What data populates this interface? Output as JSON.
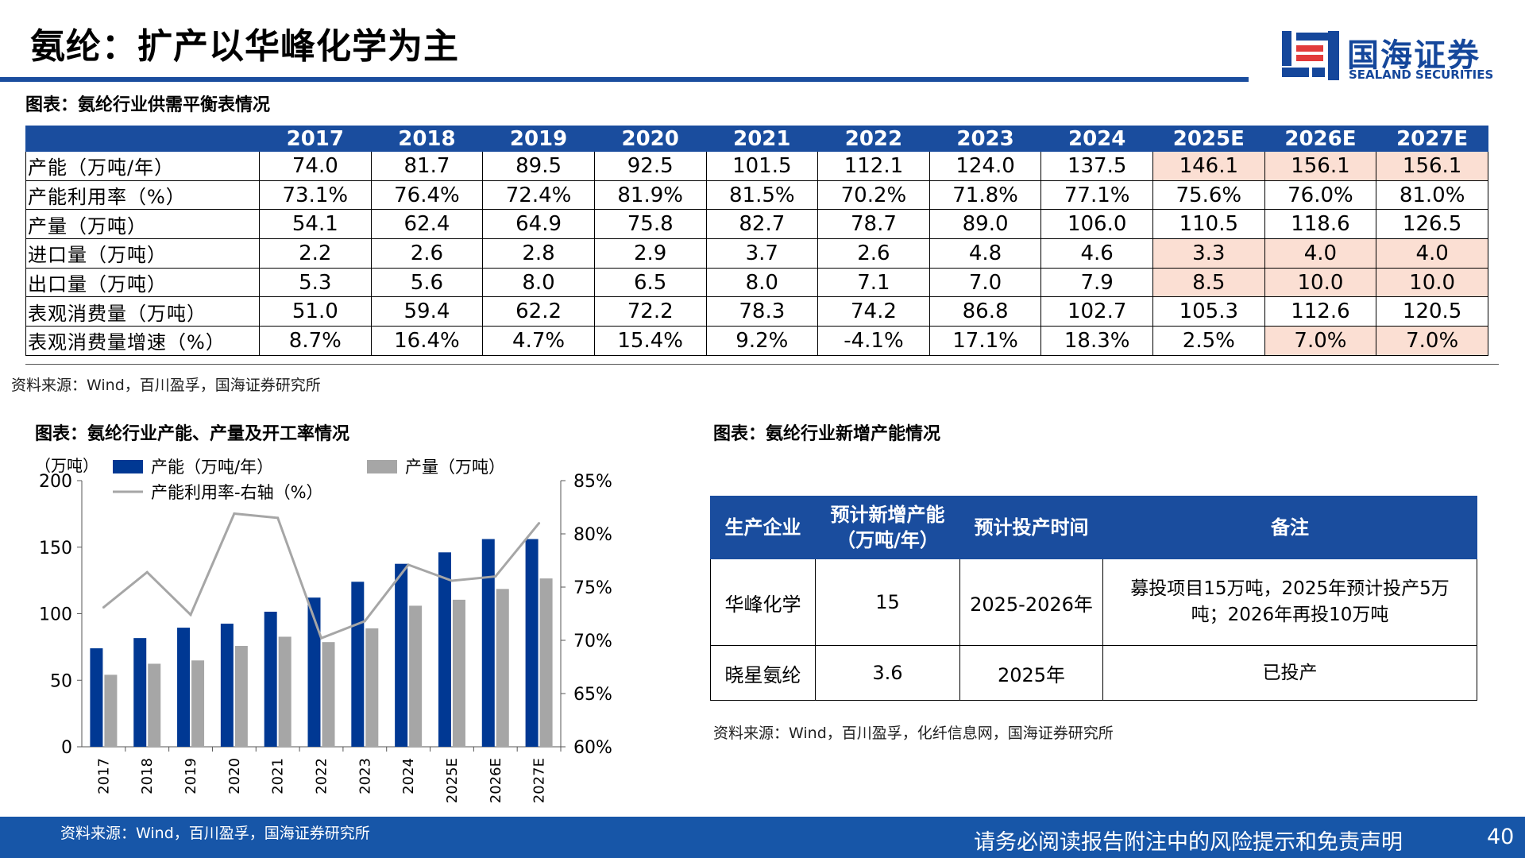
{
  "page": {
    "title": "氨纶：扩产以华峰化学为主",
    "page_number": "40",
    "disclaimer": "请务必阅读报告附注中的风险提示和免责声明"
  },
  "logo": {
    "name_cn": "国海证券",
    "name_en": "SEALAND SECURITIES",
    "color": "#15479b"
  },
  "supply_table": {
    "title": "图表：氨纶行业供需平衡表情况",
    "years": [
      "2017",
      "2018",
      "2019",
      "2020",
      "2021",
      "2022",
      "2023",
      "2024",
      "2025E",
      "2026E",
      "2027E"
    ],
    "rows": [
      {
        "label": "产能（万吨/年）",
        "values": [
          "74.0",
          "81.7",
          "89.5",
          "92.5",
          "101.5",
          "112.1",
          "124.0",
          "137.5",
          "146.1",
          "156.1",
          "156.1"
        ],
        "highlight": [
          8,
          9,
          10
        ]
      },
      {
        "label": "产能利用率（%）",
        "values": [
          "73.1%",
          "76.4%",
          "72.4%",
          "81.9%",
          "81.5%",
          "70.2%",
          "71.8%",
          "77.1%",
          "75.6%",
          "76.0%",
          "81.0%"
        ],
        "highlight": []
      },
      {
        "label": "产量（万吨）",
        "values": [
          "54.1",
          "62.4",
          "64.9",
          "75.8",
          "82.7",
          "78.7",
          "89.0",
          "106.0",
          "110.5",
          "118.6",
          "126.5"
        ],
        "highlight": []
      },
      {
        "label": "进口量（万吨）",
        "values": [
          "2.2",
          "2.6",
          "2.8",
          "2.9",
          "3.7",
          "2.6",
          "4.8",
          "4.6",
          "3.3",
          "4.0",
          "4.0"
        ],
        "highlight": [
          8,
          9,
          10
        ]
      },
      {
        "label": "出口量（万吨）",
        "values": [
          "5.3",
          "5.6",
          "8.0",
          "6.5",
          "8.0",
          "7.1",
          "7.0",
          "7.9",
          "8.5",
          "10.0",
          "10.0"
        ],
        "highlight": [
          8,
          9,
          10
        ]
      },
      {
        "label": "表观消费量（万吨）",
        "values": [
          "51.0",
          "59.4",
          "62.2",
          "72.2",
          "78.3",
          "74.2",
          "86.8",
          "102.7",
          "105.3",
          "112.6",
          "120.5"
        ],
        "highlight": []
      },
      {
        "label": "表观消费量增速（%）",
        "values": [
          "8.7%",
          "16.4%",
          "4.7%",
          "15.4%",
          "9.2%",
          "-4.1%",
          "17.1%",
          "18.3%",
          "2.5%",
          "7.0%",
          "7.0%"
        ],
        "highlight": [
          9,
          10
        ]
      }
    ],
    "source": "资料来源：Wind，百川盈孚，国海证券研究所"
  },
  "chart_section": {
    "title": "图表：氨纶行业产能、产量及开工率情况",
    "source": "资料来源：Wind，百川盈孚，国海证券研究所"
  },
  "chart_data": {
    "type": "bar",
    "categories": [
      "2017",
      "2018",
      "2019",
      "2020",
      "2021",
      "2022",
      "2023",
      "2024",
      "2025E",
      "2026E",
      "2027E"
    ],
    "series": [
      {
        "name": "产能（万吨/年）",
        "type": "bar",
        "axis": "left",
        "color": "#003893",
        "values": [
          74.0,
          81.7,
          89.5,
          92.5,
          101.5,
          112.1,
          124.0,
          137.5,
          146.1,
          156.1,
          156.1
        ]
      },
      {
        "name": "产量（万吨）",
        "type": "bar",
        "axis": "left",
        "color": "#a6a6a6",
        "values": [
          54.1,
          62.4,
          64.9,
          75.8,
          82.7,
          78.7,
          89.0,
          106.0,
          110.5,
          118.6,
          126.5
        ]
      },
      {
        "name": "产能利用率-右轴（%）",
        "type": "line",
        "axis": "right",
        "color": "#a6a6a6",
        "values": [
          73.1,
          76.4,
          72.4,
          81.9,
          81.5,
          70.2,
          71.8,
          77.1,
          75.6,
          76.0,
          81.0
        ]
      }
    ],
    "ylabel": "（万吨）",
    "ylim": [
      0,
      200
    ],
    "yticks": [
      "0",
      "50",
      "100",
      "150",
      "200"
    ],
    "y2lim": [
      60,
      85
    ],
    "y2ticks": [
      "60%",
      "65%",
      "70%",
      "75%",
      "80%",
      "85%"
    ],
    "legend_position": "top-left",
    "grid": false
  },
  "capacity_table": {
    "title": "图表：氨纶行业新增产能情况",
    "headers": [
      "生产企业",
      "预计新增产能",
      "（万吨/年）",
      "预计投产时间",
      "备注"
    ],
    "rows": [
      {
        "company": "华峰化学",
        "capacity": "15",
        "time": "2025-2026年",
        "note_line1": "募投项目15万吨，2025年预计投产5万",
        "note_line2": "吨；2026年再投10万吨"
      },
      {
        "company": "晓星氨纶",
        "capacity": "3.6",
        "time": "2025年",
        "note_line1": "已投产",
        "note_line2": ""
      }
    ],
    "source": "资料来源：Wind，百川盈孚，化纤信息网，国海证券研究所"
  },
  "colors": {
    "brand_blue": "#1a4d9e",
    "highlight": "#fbdfd3",
    "footer_blue": "#1756a8"
  }
}
